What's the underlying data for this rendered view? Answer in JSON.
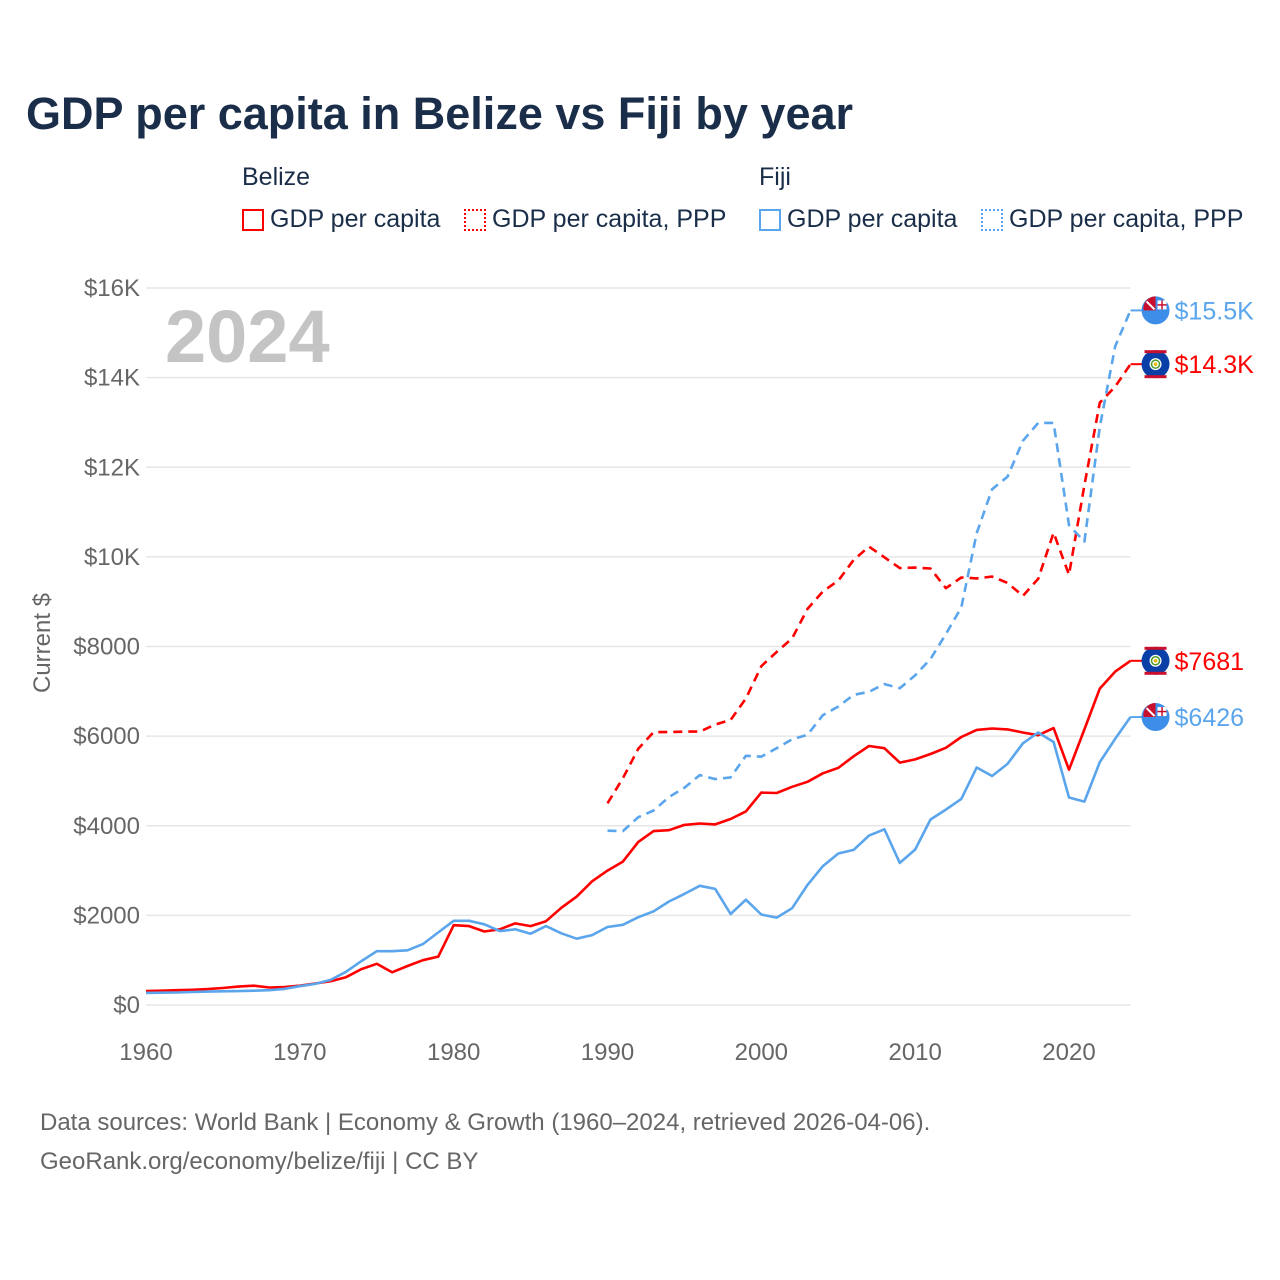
{
  "title": "GDP per capita in Belize vs Fiji by year",
  "legend": {
    "groups": [
      {
        "country": "Belize",
        "items": [
          "GDP per capita",
          "GDP per capita, PPP"
        ],
        "color": "#ff0000"
      },
      {
        "country": "Fiji",
        "items": [
          "GDP per capita",
          "GDP per capita, PPP"
        ],
        "color": "#5aa5ec"
      }
    ]
  },
  "footer": {
    "line1": "Data sources: World Bank | Economy & Growth (1960–2024, retrieved 2026-04-06).",
    "line2": "GeoRank.org/economy/belize/fiji | CC BY"
  },
  "chart_data": {
    "type": "line",
    "title": "GDP per capita in Belize vs Fiji by year",
    "ylabel": "Current $",
    "xlabel": "",
    "year_watermark": "2024",
    "xlim": [
      1960,
      2024
    ],
    "ylim": [
      0,
      16000
    ],
    "xticks": [
      "1960",
      "1970",
      "1980",
      "1990",
      "2000",
      "2010",
      "2020"
    ],
    "yticks": [
      "$0",
      "$2000",
      "$4000",
      "$6000",
      "$8000",
      "$10K",
      "$12K",
      "$14K",
      "$16K"
    ],
    "grid": true,
    "series": [
      {
        "name": "Belize GDP per capita",
        "color": "#ff0000",
        "dash": false,
        "start": 1960,
        "end_label": "$7681",
        "values": [
          310,
          320,
          330,
          340,
          355,
          380,
          410,
          430,
          390,
          400,
          430,
          480,
          530,
          620,
          800,
          920,
          730,
          870,
          1000,
          1080,
          1780,
          1760,
          1640,
          1690,
          1820,
          1760,
          1870,
          2170,
          2420,
          2760,
          3000,
          3200,
          3640,
          3880,
          3900,
          4020,
          4050,
          4030,
          4150,
          4320,
          4740,
          4730,
          4870,
          4980,
          5170,
          5290,
          5550,
          5780,
          5730,
          5410,
          5480,
          5600,
          5740,
          5980,
          6140,
          6170,
          6150,
          6080,
          6020,
          6180,
          5250,
          6150,
          7060,
          7440,
          7681
        ]
      },
      {
        "name": "Belize GDP per capita, PPP",
        "color": "#ff0000",
        "dash": true,
        "start": 1990,
        "end_label": "$14.3K",
        "values": [
          4500,
          5060,
          5720,
          6090,
          6090,
          6100,
          6100,
          6260,
          6360,
          6840,
          7560,
          7880,
          8180,
          8840,
          9230,
          9470,
          9930,
          10230,
          9990,
          9750,
          9760,
          9740,
          9300,
          9540,
          9520,
          9560,
          9420,
          9130,
          9510,
          10540,
          9600,
          11600,
          13440,
          13800,
          14300
        ]
      },
      {
        "name": "Fiji GDP per capita",
        "color": "#5aa5ec",
        "dash": false,
        "start": 1960,
        "end_label": "$6426",
        "values": [
          270,
          275,
          280,
          290,
          300,
          305,
          310,
          320,
          330,
          360,
          420,
          470,
          560,
          740,
          980,
          1200,
          1200,
          1220,
          1360,
          1620,
          1880,
          1880,
          1800,
          1650,
          1690,
          1590,
          1760,
          1600,
          1480,
          1560,
          1740,
          1790,
          1960,
          2090,
          2310,
          2480,
          2660,
          2590,
          2030,
          2350,
          2020,
          1950,
          2160,
          2680,
          3100,
          3380,
          3460,
          3780,
          3920,
          3170,
          3470,
          4140,
          4360,
          4600,
          5300,
          5110,
          5380,
          5840,
          6080,
          5870,
          4630,
          4540,
          5420,
          5940,
          6426
        ]
      },
      {
        "name": "Fiji GDP per capita, PPP",
        "color": "#5aa5ec",
        "dash": true,
        "start": 1990,
        "end_label": "$15.5K",
        "values": [
          3890,
          3880,
          4190,
          4340,
          4640,
          4850,
          5130,
          5040,
          5080,
          5560,
          5540,
          5730,
          5930,
          6030,
          6470,
          6660,
          6920,
          6990,
          7160,
          7070,
          7360,
          7720,
          8280,
          8870,
          10530,
          11510,
          11790,
          12590,
          12990,
          12990,
          10710,
          10340,
          12900,
          14700,
          15500
        ]
      }
    ]
  }
}
